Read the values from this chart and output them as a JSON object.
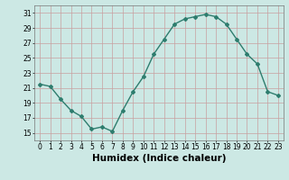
{
  "x": [
    0,
    1,
    2,
    3,
    4,
    5,
    6,
    7,
    8,
    9,
    10,
    11,
    12,
    13,
    14,
    15,
    16,
    17,
    18,
    19,
    20,
    21,
    22,
    23
  ],
  "y": [
    21.5,
    21.2,
    19.5,
    18.0,
    17.2,
    15.5,
    15.8,
    15.2,
    18.0,
    20.5,
    22.5,
    25.5,
    27.5,
    29.5,
    30.2,
    30.5,
    30.8,
    30.5,
    29.5,
    27.5,
    25.5,
    24.2,
    20.5,
    20.0
  ],
  "line_color": "#2e7d6e",
  "marker": "D",
  "marker_size": 2,
  "bg_color": "#cce8e4",
  "grid_color_major": "#c8a0a0",
  "xlabel": "Humidex (Indice chaleur)",
  "xlim": [
    -0.5,
    23.5
  ],
  "ylim": [
    14,
    32
  ],
  "yticks": [
    15,
    17,
    19,
    21,
    23,
    25,
    27,
    29,
    31
  ],
  "xticks": [
    0,
    1,
    2,
    3,
    4,
    5,
    6,
    7,
    8,
    9,
    10,
    11,
    12,
    13,
    14,
    15,
    16,
    17,
    18,
    19,
    20,
    21,
    22,
    23
  ],
  "tick_fontsize": 5.5,
  "xlabel_fontsize": 7.5,
  "linewidth": 1.0
}
